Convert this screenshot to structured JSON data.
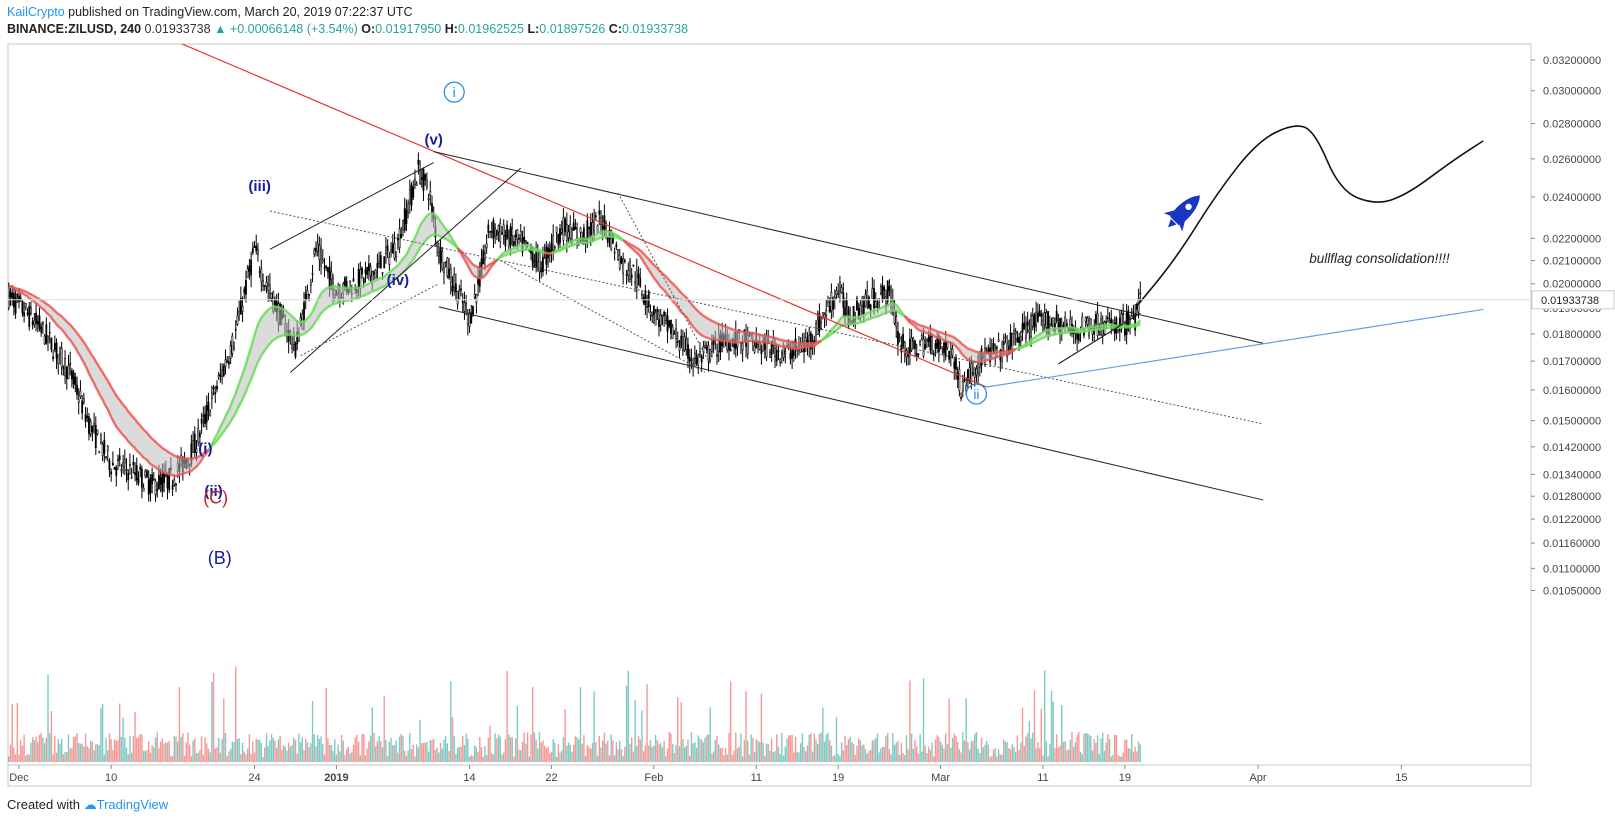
{
  "header": {
    "author": "KailCrypto",
    "published": " published on TradingView.com, March 20, 2019 07:22:37 UTC",
    "symbol": "BINANCE:ZILUSD, 240",
    "last": "0.01933738",
    "change": "+0.00066148 (+3.54%)",
    "open_label": "O:",
    "open": "0.01917950",
    "high_label": "H:",
    "high": "0.01962525",
    "low_label": "L:",
    "low": "0.01897526",
    "close_label": "C:",
    "close": "0.01933738"
  },
  "footer": {
    "created_with": "Created with",
    "brand": "TradingView"
  },
  "colors": {
    "up": "#26a69a",
    "down": "#ef5350",
    "candle": "#000000",
    "ribbon_red": "#ef5350",
    "ribbon_green": "#66dd55",
    "trend_red": "#e53935",
    "support_blue": "#64a0e6",
    "wave_blue": "#1b1b9e",
    "circle_blue": "#1e88e5",
    "c_label": "#c62828"
  },
  "chart_data": {
    "type": "candlestick",
    "symbol": "ZILUSD",
    "exchange": "BINANCE",
    "interval": "240",
    "price_axis": {
      "scale": "log",
      "ticks": [
        0.032,
        0.03,
        0.028,
        0.026,
        0.024,
        0.022,
        0.021,
        0.02,
        0.019,
        0.018,
        0.017,
        0.016,
        0.015,
        0.0142,
        0.0134,
        0.0128,
        0.0122,
        0.0116,
        0.011,
        0.0105
      ],
      "tick_labels": [
        "0.03200000",
        "0.03000000",
        "0.02800000",
        "0.02600000",
        "0.02400000",
        "0.02200000",
        "0.02100000",
        "0.02000000",
        "0.01900000",
        "0.01800000",
        "0.01700000",
        "0.01600000",
        "0.01500000",
        "0.01420000",
        "0.01340000",
        "0.01280000",
        "0.01220000",
        "0.01160000",
        "0.01100000",
        "0.01050000"
      ],
      "last_price_label": "0.01933738",
      "last_price": 0.01933738
    },
    "time_axis": {
      "ticks": [
        {
          "label": "Dec",
          "day": 0
        },
        {
          "label": "10",
          "day": 9
        },
        {
          "label": "24",
          "day": 23
        },
        {
          "label": "2019",
          "day": 31
        },
        {
          "label": "14",
          "day": 44
        },
        {
          "label": "22",
          "day": 52
        },
        {
          "label": "Feb",
          "day": 62
        },
        {
          "label": "11",
          "day": 72
        },
        {
          "label": "19",
          "day": 80
        },
        {
          "label": "Mar",
          "day": 90
        },
        {
          "label": "11",
          "day": 100
        },
        {
          "label": "19",
          "day": 108
        },
        {
          "label": "Apr",
          "day": 121
        },
        {
          "label": "15",
          "day": 135
        }
      ]
    },
    "price_path": [
      [
        -1,
        0.0195
      ],
      [
        2,
        0.0183
      ],
      [
        5,
        0.0166
      ],
      [
        7,
        0.0148
      ],
      [
        9,
        0.0137
      ],
      [
        11,
        0.0135
      ],
      [
        13,
        0.0131
      ],
      [
        15,
        0.0133
      ],
      [
        17,
        0.0141
      ],
      [
        19,
        0.0158
      ],
      [
        21,
        0.0178
      ],
      [
        23,
        0.0215
      ],
      [
        24,
        0.0201
      ],
      [
        26,
        0.0183
      ],
      [
        27,
        0.0175
      ],
      [
        28,
        0.0192
      ],
      [
        29,
        0.0215
      ],
      [
        31,
        0.0197
      ],
      [
        33,
        0.0201
      ],
      [
        35,
        0.0206
      ],
      [
        37,
        0.0218
      ],
      [
        39,
        0.0254
      ],
      [
        40,
        0.0244
      ],
      [
        41,
        0.0215
      ],
      [
        43,
        0.0195
      ],
      [
        44,
        0.0186
      ],
      [
        45,
        0.0202
      ],
      [
        46,
        0.0225
      ],
      [
        49,
        0.0218
      ],
      [
        51,
        0.0208
      ],
      [
        53,
        0.0225
      ],
      [
        55,
        0.0221
      ],
      [
        57,
        0.0229
      ],
      [
        59,
        0.0208
      ],
      [
        60,
        0.0205
      ],
      [
        62,
        0.0188
      ],
      [
        64,
        0.018
      ],
      [
        66,
        0.017
      ],
      [
        67,
        0.0172
      ],
      [
        69,
        0.0178
      ],
      [
        71,
        0.0177
      ],
      [
        73,
        0.0175
      ],
      [
        75,
        0.0173
      ],
      [
        77,
        0.0176
      ],
      [
        79,
        0.019
      ],
      [
        80,
        0.0198
      ],
      [
        81,
        0.0187
      ],
      [
        83,
        0.0193
      ],
      [
        85,
        0.0197
      ],
      [
        86,
        0.0177
      ],
      [
        87,
        0.0174
      ],
      [
        89,
        0.0177
      ],
      [
        91,
        0.0174
      ],
      [
        92,
        0.0161
      ],
      [
        93,
        0.0166
      ],
      [
        94,
        0.0171
      ],
      [
        96,
        0.0174
      ],
      [
        97,
        0.0177
      ],
      [
        99,
        0.0184
      ],
      [
        101,
        0.0185
      ],
      [
        103,
        0.0181
      ],
      [
        105,
        0.0184
      ],
      [
        107,
        0.0183
      ],
      [
        108,
        0.0184
      ],
      [
        109,
        0.0186
      ],
      [
        109.6,
        0.0193
      ]
    ],
    "annotations": {
      "waves": [
        {
          "label": "(i)",
          "day": 18.2,
          "price": 0.014
        },
        {
          "label": "(ii)",
          "day": 19.0,
          "price": 0.0128
        },
        {
          "label": "(iii)",
          "day": 23.5,
          "price": 0.0243
        },
        {
          "label": "(iv)",
          "day": 37.0,
          "price": 0.01995
        },
        {
          "label": "(v)",
          "day": 40.5,
          "price": 0.0268
        }
      ],
      "circled": [
        {
          "label": "i",
          "day": 42.5,
          "price": 0.0296
        },
        {
          "label": "ii",
          "day": 93.5,
          "price": 0.0157
        }
      ],
      "corrective": [
        {
          "label": "(C)",
          "day": 19.2,
          "price": 0.0126,
          "color": "c_label"
        },
        {
          "label": "(B)",
          "day": 19.6,
          "price": 0.0111,
          "color": "wave_blue"
        }
      ],
      "text": "bullflag consolidation!!!!",
      "rocket": true
    }
  }
}
